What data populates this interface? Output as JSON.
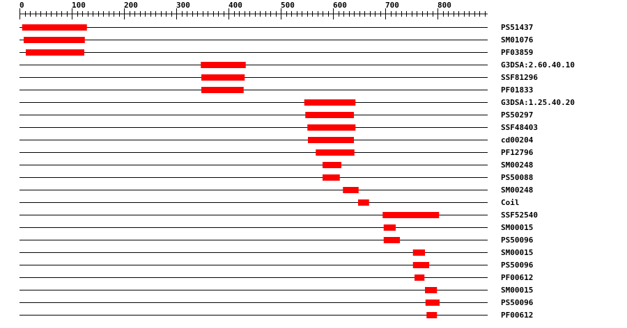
{
  "chart_data": {
    "type": "domain-track",
    "sequence_length": 896,
    "axis": {
      "ticks": [
        0,
        100,
        200,
        300,
        400,
        500,
        600,
        700,
        800
      ],
      "minor_step": 10
    },
    "bar_color": "#ff0000",
    "tracks": [
      {
        "label": "PS51437",
        "start": 5,
        "end": 129
      },
      {
        "label": "SM01076",
        "start": 8,
        "end": 125
      },
      {
        "label": "PF03859",
        "start": 12,
        "end": 124
      },
      {
        "label": "G3DSA:2.60.40.10",
        "start": 347,
        "end": 433
      },
      {
        "label": "SSF81296",
        "start": 348,
        "end": 431
      },
      {
        "label": "PF01833",
        "start": 348,
        "end": 429
      },
      {
        "label": "G3DSA:1.25.40.20",
        "start": 545,
        "end": 643
      },
      {
        "label": "PS50297",
        "start": 547,
        "end": 640
      },
      {
        "label": "SSF48403",
        "start": 551,
        "end": 643
      },
      {
        "label": "cd00204",
        "start": 552,
        "end": 640
      },
      {
        "label": "PF12796",
        "start": 567,
        "end": 641
      },
      {
        "label": "SM00248",
        "start": 580,
        "end": 616
      },
      {
        "label": "PS50088",
        "start": 580,
        "end": 613
      },
      {
        "label": "SM00248",
        "start": 619,
        "end": 649
      },
      {
        "label": "Coil",
        "start": 648,
        "end": 669
      },
      {
        "label": "SSF52540",
        "start": 695,
        "end": 803
      },
      {
        "label": "SM00015",
        "start": 697,
        "end": 720
      },
      {
        "label": "PS50096",
        "start": 697,
        "end": 728
      },
      {
        "label": "SM00015",
        "start": 753,
        "end": 776
      },
      {
        "label": "PS50096",
        "start": 753,
        "end": 784
      },
      {
        "label": "PF00612",
        "start": 756,
        "end": 775
      },
      {
        "label": "SM00015",
        "start": 776,
        "end": 799
      },
      {
        "label": "PS50096",
        "start": 777,
        "end": 804
      },
      {
        "label": "PF00612",
        "start": 779,
        "end": 799
      }
    ]
  }
}
